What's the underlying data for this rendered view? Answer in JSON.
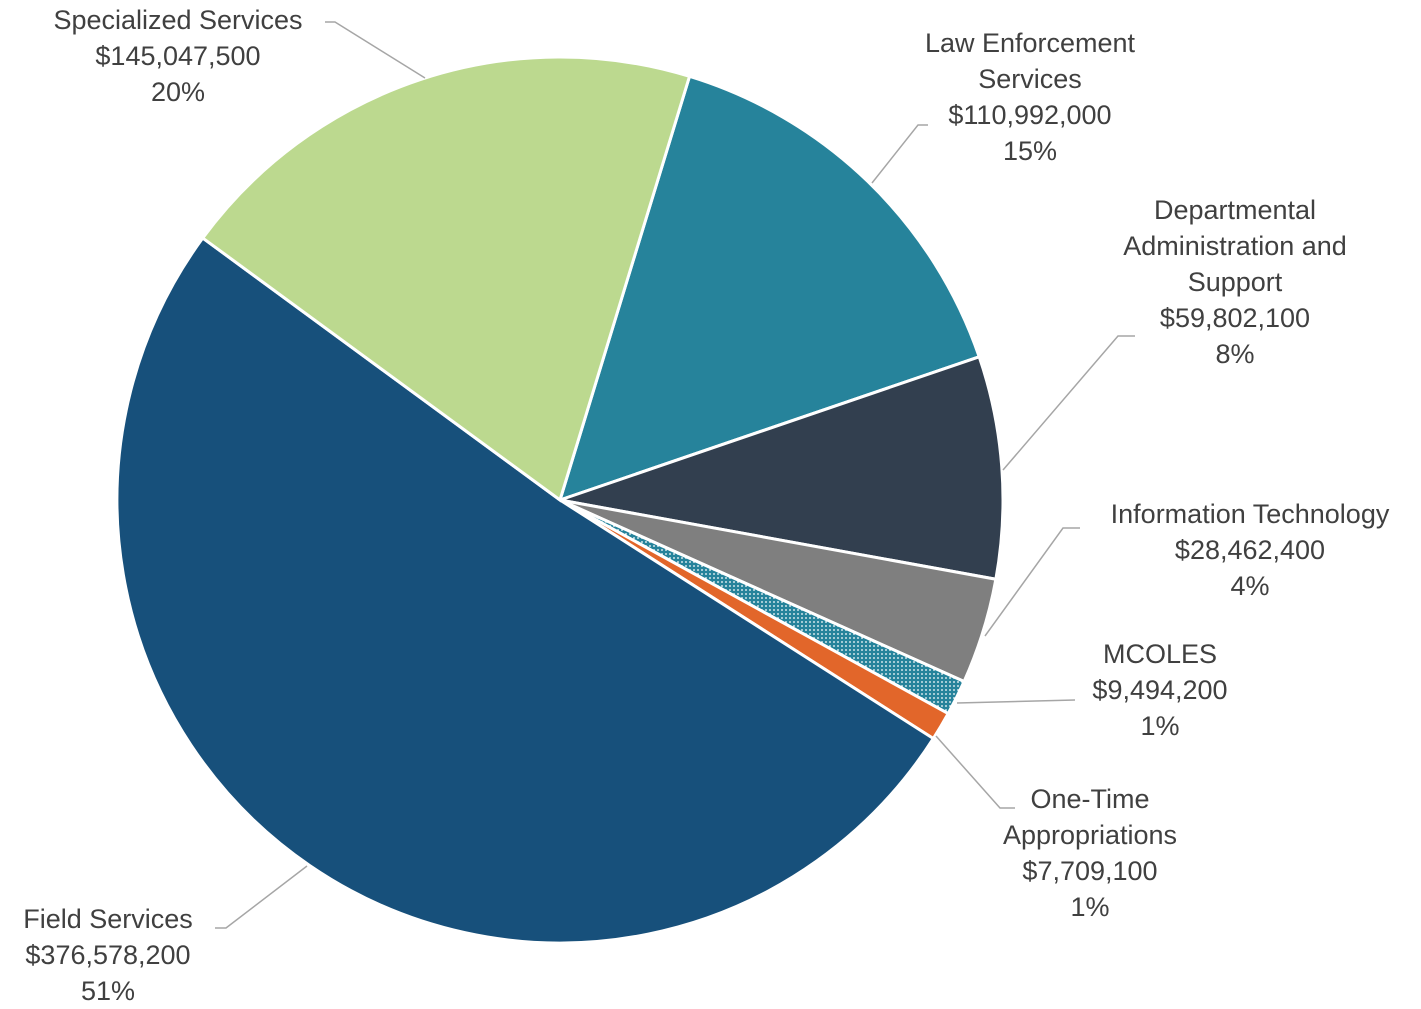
{
  "chart_data": {
    "type": "pie",
    "categories": [
      "Law Enforcement Services",
      "Departmental Administration and Support",
      "Information Technology",
      "MCOLES",
      "One-Time Appropriations",
      "Field Services",
      "Specialized Services"
    ],
    "values": [
      110992000,
      59802100,
      28462400,
      9494200,
      7709100,
      376578200,
      145047500
    ],
    "value_labels": [
      "$110,992,000",
      "$59,802,100",
      "$28,462,400",
      "$9,494,200",
      "$7,709,100",
      "$376,578,200",
      "$145,047,500"
    ],
    "percentages": [
      15,
      8,
      4,
      1,
      1,
      51,
      20
    ],
    "percentage_labels": [
      "15%",
      "8%",
      "4%",
      "1%",
      "1%",
      "51%",
      "20%"
    ],
    "colors": [
      "#26839b",
      "#323f4f",
      "#7f7f7f",
      "#26839b",
      "#e2662a",
      "#17507b",
      "#bcd98f"
    ],
    "patterned": [
      false,
      false,
      false,
      true,
      false,
      false,
      false
    ]
  }
}
